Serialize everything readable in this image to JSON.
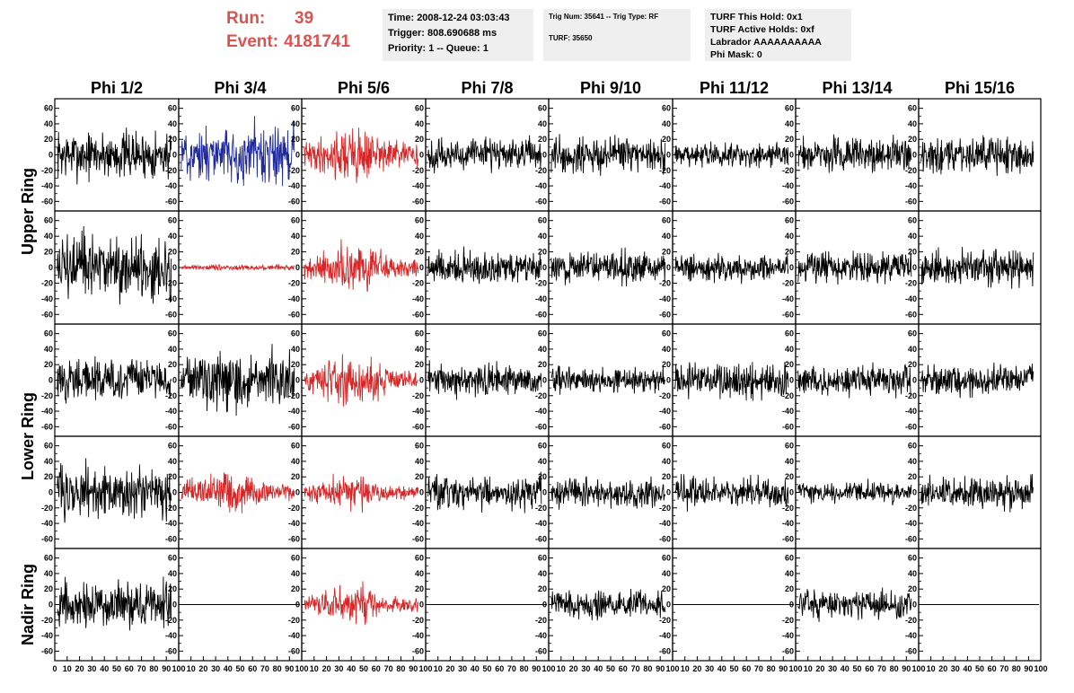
{
  "run_info": {
    "run_label": "Run:",
    "run_value": "39",
    "event_label": "Event:",
    "event_value": "4181741"
  },
  "time_box": {
    "time": "Time: 2008-12-24 03:03:43",
    "trigger": "Trigger: 808.690688 ms",
    "priority": "Priority: 1 -- Queue: 1"
  },
  "trig_box": {
    "trig": "Trig Num: 35641 -- Trig Type: RF",
    "turf": "TURF: 35650"
  },
  "turf_box": {
    "this_hold": "TURF This Hold: 0x1",
    "active_holds": "TURF Active Holds: 0xf",
    "labrador": "Labrador AAAAAAAAAA",
    "phi_mask": "Phi Mask: 0"
  },
  "chart_data": {
    "type": "line",
    "columns": [
      "Phi 1/2",
      "Phi 3/4",
      "Phi 5/6",
      "Phi 7/8",
      "Phi 9/10",
      "Phi 11/12",
      "Phi 13/14",
      "Phi 15/16"
    ],
    "row_labels": [
      {
        "label": "Upper Ring",
        "rows": [
          0,
          1
        ]
      },
      {
        "label": "Lower Ring",
        "rows": [
          2,
          3
        ]
      },
      {
        "label": "Nadir Ring",
        "rows": [
          4
        ]
      }
    ],
    "ylim": [
      -70,
      70
    ],
    "y_ticks": [
      -60,
      -40,
      -20,
      0,
      20,
      40,
      60
    ],
    "xlim": [
      0,
      100
    ],
    "x_ticks": [
      0,
      10,
      20,
      30,
      40,
      50,
      60,
      70,
      80,
      90,
      100
    ],
    "colors": {
      "normal": "#000000",
      "triggered": "#d62728",
      "selected": "#1f2a9c"
    },
    "panels": [
      [
        {
          "color": "normal",
          "amp": 28,
          "env": "flat"
        },
        {
          "color": "selected",
          "amp": 32,
          "env": "flat"
        },
        {
          "color": "triggered",
          "amp": 34,
          "env": "burst"
        },
        {
          "color": "normal",
          "amp": 18,
          "env": "flat"
        },
        {
          "color": "normal",
          "amp": 22,
          "env": "flat"
        },
        {
          "color": "normal",
          "amp": 15,
          "env": "flat"
        },
        {
          "color": "normal",
          "amp": 20,
          "env": "flat"
        },
        {
          "color": "normal",
          "amp": 20,
          "env": "flat"
        }
      ],
      [
        {
          "color": "normal",
          "amp": 38,
          "env": "flat"
        },
        {
          "color": "triggered",
          "amp": 3,
          "env": "flat"
        },
        {
          "color": "triggered",
          "amp": 28,
          "env": "burst"
        },
        {
          "color": "normal",
          "amp": 18,
          "env": "flat"
        },
        {
          "color": "normal",
          "amp": 18,
          "env": "flat"
        },
        {
          "color": "normal",
          "amp": 15,
          "env": "flat"
        },
        {
          "color": "normal",
          "amp": 18,
          "env": "flat"
        },
        {
          "color": "normal",
          "amp": 20,
          "env": "flat"
        }
      ],
      [
        {
          "color": "normal",
          "amp": 25,
          "env": "flat"
        },
        {
          "color": "normal",
          "amp": 30,
          "env": "flat"
        },
        {
          "color": "triggered",
          "amp": 30,
          "env": "burst"
        },
        {
          "color": "normal",
          "amp": 18,
          "env": "flat"
        },
        {
          "color": "normal",
          "amp": 15,
          "env": "flat"
        },
        {
          "color": "normal",
          "amp": 20,
          "env": "flat"
        },
        {
          "color": "normal",
          "amp": 18,
          "env": "flat"
        },
        {
          "color": "normal",
          "amp": 18,
          "env": "flat"
        }
      ],
      [
        {
          "color": "normal",
          "amp": 30,
          "env": "flat"
        },
        {
          "color": "triggered",
          "amp": 26,
          "env": "burst"
        },
        {
          "color": "triggered",
          "amp": 22,
          "env": "burst"
        },
        {
          "color": "normal",
          "amp": 18,
          "env": "flat"
        },
        {
          "color": "normal",
          "amp": 16,
          "env": "flat"
        },
        {
          "color": "normal",
          "amp": 18,
          "env": "flat"
        },
        {
          "color": "normal",
          "amp": 12,
          "env": "flat"
        },
        {
          "color": "normal",
          "amp": 18,
          "env": "flat"
        }
      ],
      [
        {
          "color": "normal",
          "amp": 25,
          "env": "flat"
        },
        {
          "color": "normal",
          "amp": 0,
          "env": "flat"
        },
        {
          "color": "triggered",
          "amp": 22,
          "env": "burst"
        },
        {
          "color": "normal",
          "amp": 0,
          "env": "flat"
        },
        {
          "color": "normal",
          "amp": 16,
          "env": "flat"
        },
        {
          "color": "normal",
          "amp": 0,
          "env": "flat"
        },
        {
          "color": "normal",
          "amp": 16,
          "env": "flat"
        },
        {
          "color": "normal",
          "amp": 0,
          "env": "flat"
        }
      ]
    ]
  }
}
